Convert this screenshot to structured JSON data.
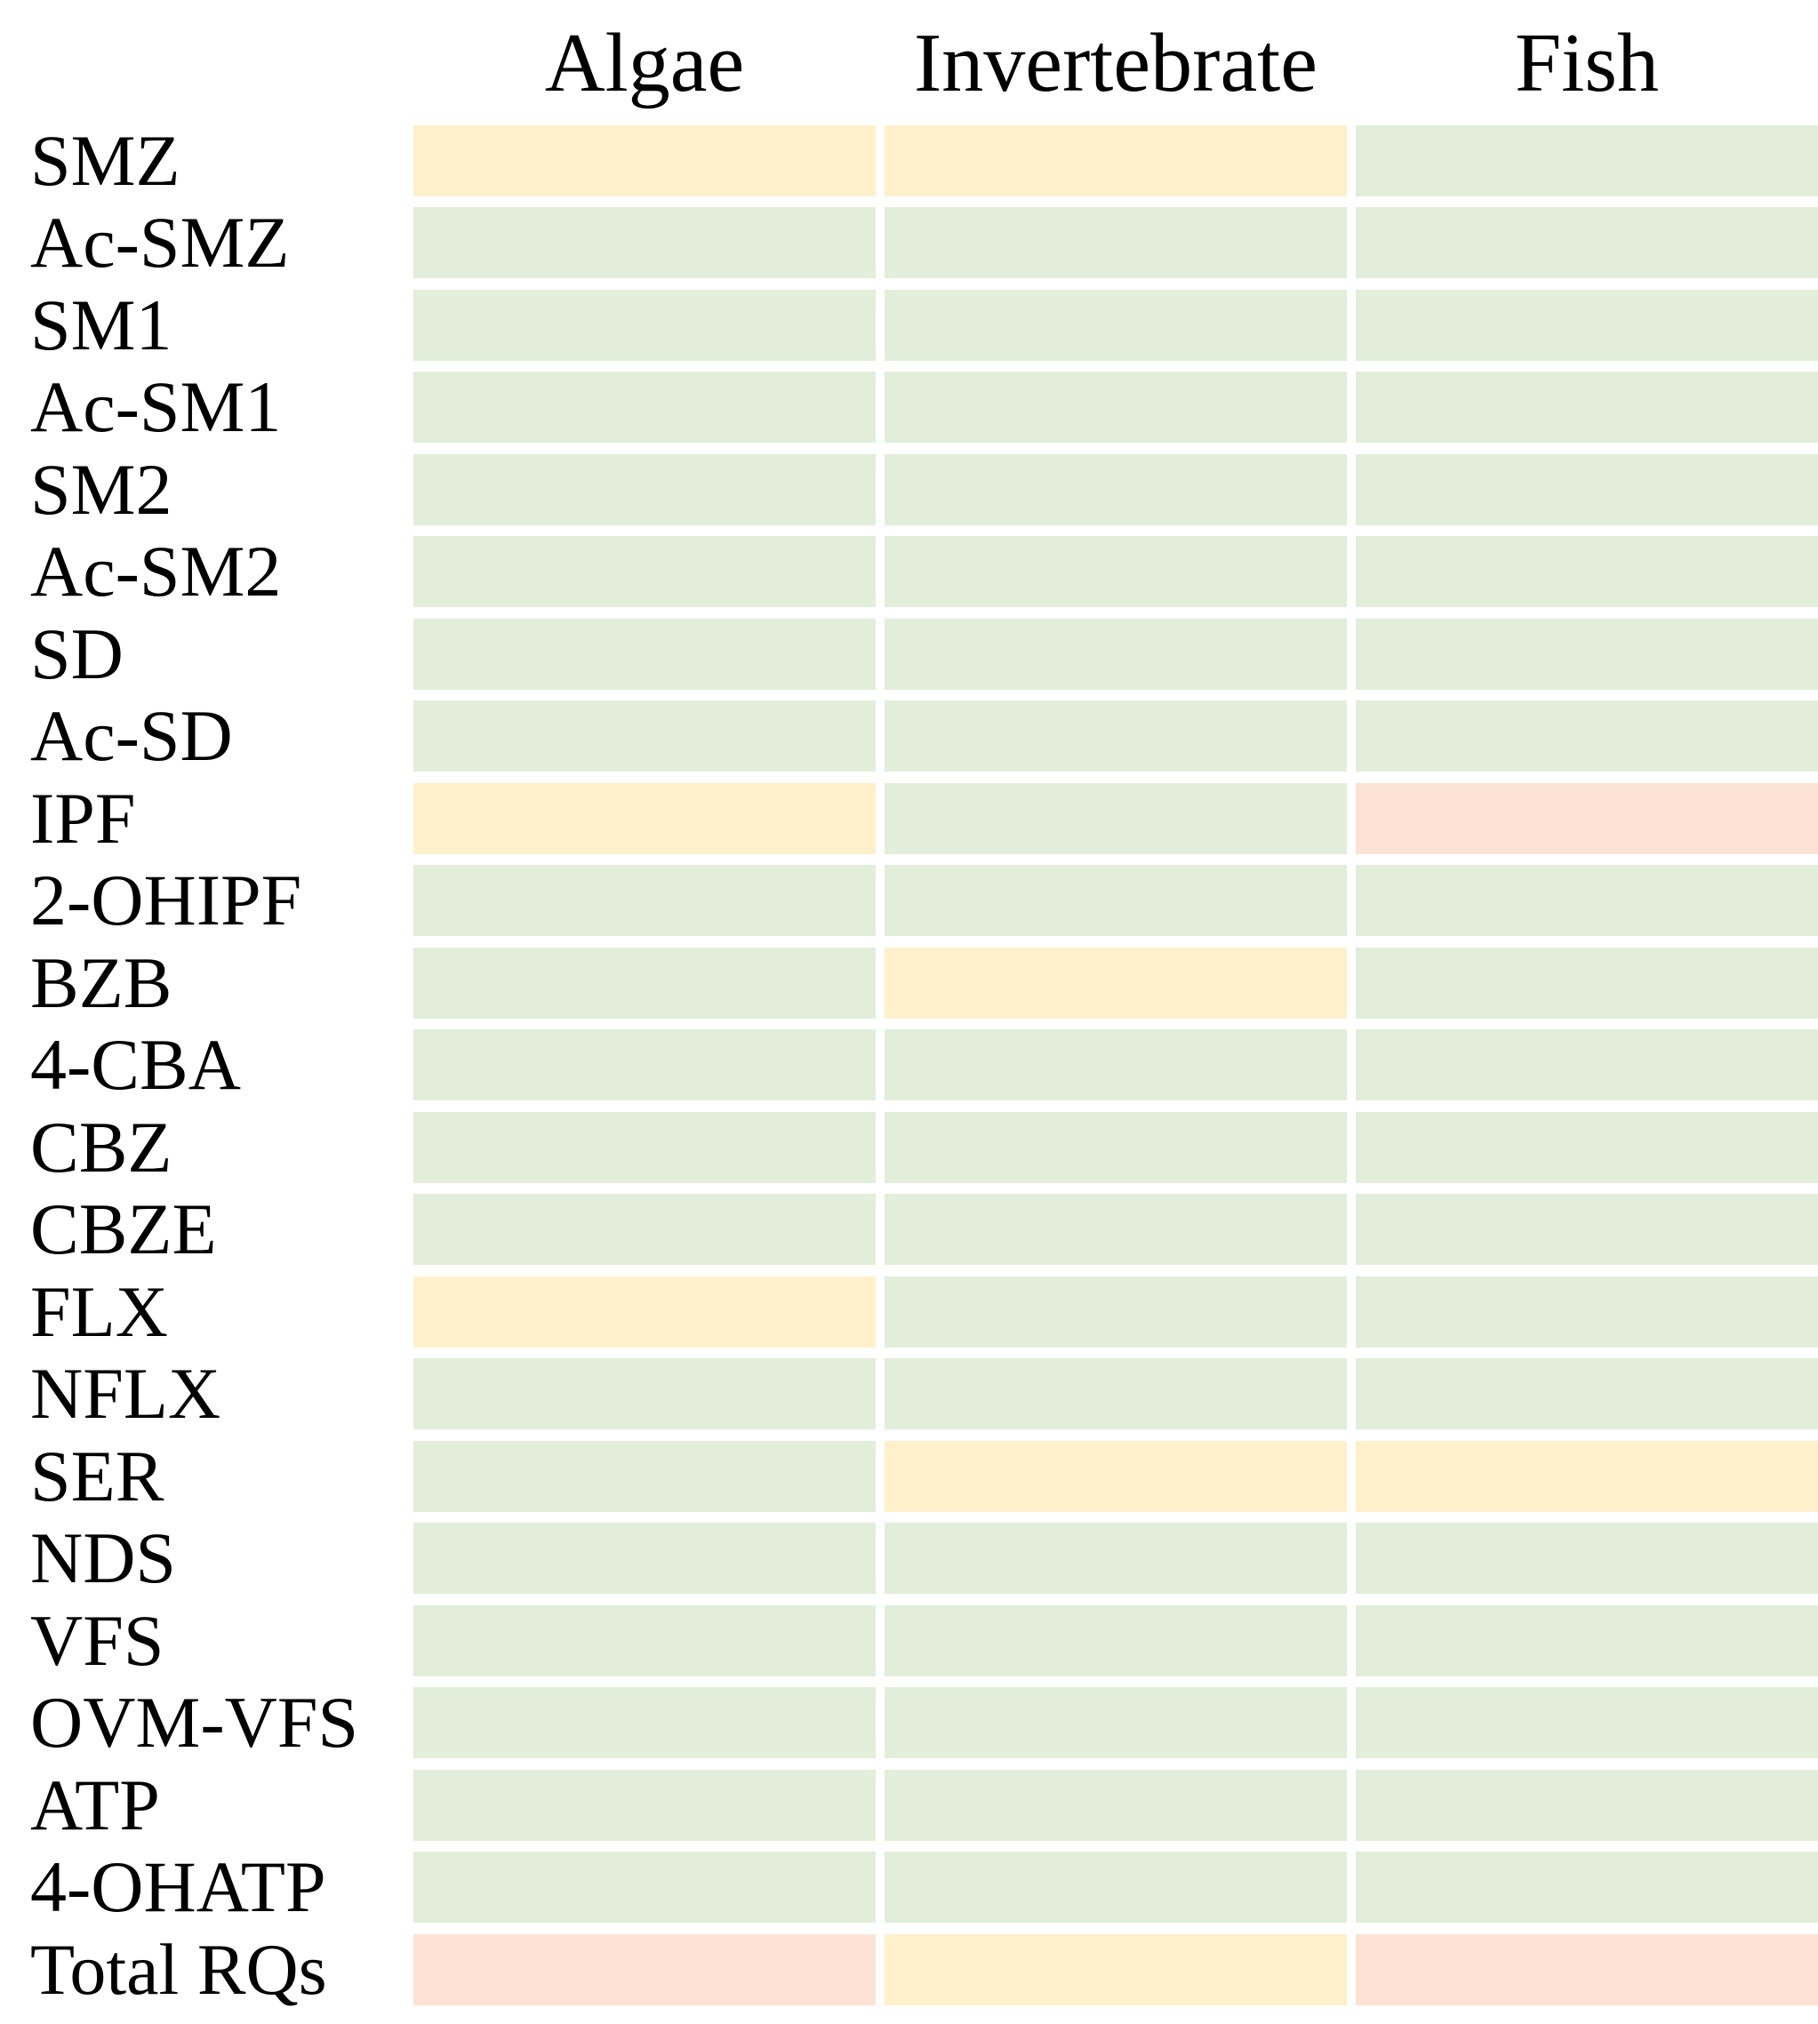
{
  "header": {
    "columns": [
      "Algae",
      "Invertebrate",
      "Fish"
    ]
  },
  "chart_data": {
    "type": "heatmap",
    "columns": [
      "Algae",
      "Invertebrate",
      "Fish"
    ],
    "rows": [
      "SMZ",
      "Ac-SMZ",
      "SM1",
      "Ac-SM1",
      "SM2",
      "Ac-SM2",
      "SD",
      "Ac-SD",
      "IPF",
      "2-OHIPF",
      "BZB",
      "4-CBA",
      "CBZ",
      "CBZE",
      "FLX",
      "NFLX",
      "SER",
      "NDS",
      "VFS",
      "OVM-VFS",
      "ATP",
      "4-OHATP",
      "Total RQs"
    ],
    "cell_levels": [
      [
        "yellow",
        "yellow",
        "green"
      ],
      [
        "green",
        "green",
        "green"
      ],
      [
        "green",
        "green",
        "green"
      ],
      [
        "green",
        "green",
        "green"
      ],
      [
        "green",
        "green",
        "green"
      ],
      [
        "green",
        "green",
        "green"
      ],
      [
        "green",
        "green",
        "green"
      ],
      [
        "green",
        "green",
        "green"
      ],
      [
        "yellow",
        "green",
        "red"
      ],
      [
        "green",
        "green",
        "green"
      ],
      [
        "green",
        "yellow",
        "green"
      ],
      [
        "green",
        "green",
        "green"
      ],
      [
        "green",
        "green",
        "green"
      ],
      [
        "green",
        "green",
        "green"
      ],
      [
        "yellow",
        "green",
        "green"
      ],
      [
        "green",
        "green",
        "green"
      ],
      [
        "green",
        "yellow",
        "yellow"
      ],
      [
        "green",
        "green",
        "green"
      ],
      [
        "green",
        "green",
        "green"
      ],
      [
        "green",
        "green",
        "green"
      ],
      [
        "green",
        "green",
        "green"
      ],
      [
        "green",
        "green",
        "green"
      ],
      [
        "red",
        "yellow",
        "red"
      ]
    ],
    "color_scale": {
      "green": "#E2EEDA",
      "yellow": "#FDF0CA",
      "red": "#FCE3D5"
    }
  }
}
